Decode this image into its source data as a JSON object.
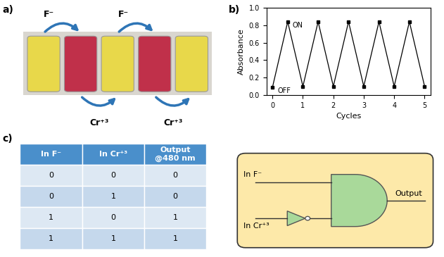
{
  "panel_labels": [
    "a)",
    "b)",
    "c)"
  ],
  "vials": {
    "colors": [
      "#e8d84a",
      "#c0304a",
      "#e8d84a",
      "#c0304a",
      "#e8d84a"
    ],
    "top_arrows": [
      "F⁻",
      "F⁻"
    ],
    "bottom_arrows": [
      "Cr⁺³",
      "Cr⁺³"
    ]
  },
  "chart_data": {
    "type": "line",
    "x": [
      0,
      0.5,
      1,
      1.5,
      2,
      2.5,
      3,
      3.5,
      4,
      4.5,
      5
    ],
    "values": [
      0.09,
      0.84,
      0.1,
      0.84,
      0.1,
      0.84,
      0.1,
      0.84,
      0.1,
      0.84,
      0.1
    ],
    "xlim": [
      -0.2,
      5.2
    ],
    "ylim": [
      0.0,
      1.0
    ],
    "xticks": [
      0,
      1,
      2,
      3,
      4,
      5
    ],
    "yticks": [
      0.0,
      0.2,
      0.4,
      0.6,
      0.8,
      1.0
    ],
    "xlabel": "Cycles",
    "ylabel": "Absorbance",
    "color": "#000000",
    "marker": "square",
    "line_style": "solid",
    "annotations": [
      {
        "text": "ON",
        "x": 0.5,
        "y": 0.84
      },
      {
        "text": "OFF",
        "x": 0,
        "y": 0.09
      }
    ]
  },
  "table": {
    "header": [
      "In F⁻",
      "In Cr⁺³",
      "Output\n@480 nm"
    ],
    "rows": [
      [
        0,
        0,
        0
      ],
      [
        0,
        1,
        0
      ],
      [
        1,
        0,
        1
      ],
      [
        1,
        1,
        1
      ]
    ]
  },
  "logic_gate": {
    "inputs": [
      "In F⁻",
      "In Cr⁺³"
    ],
    "output": "Output"
  }
}
